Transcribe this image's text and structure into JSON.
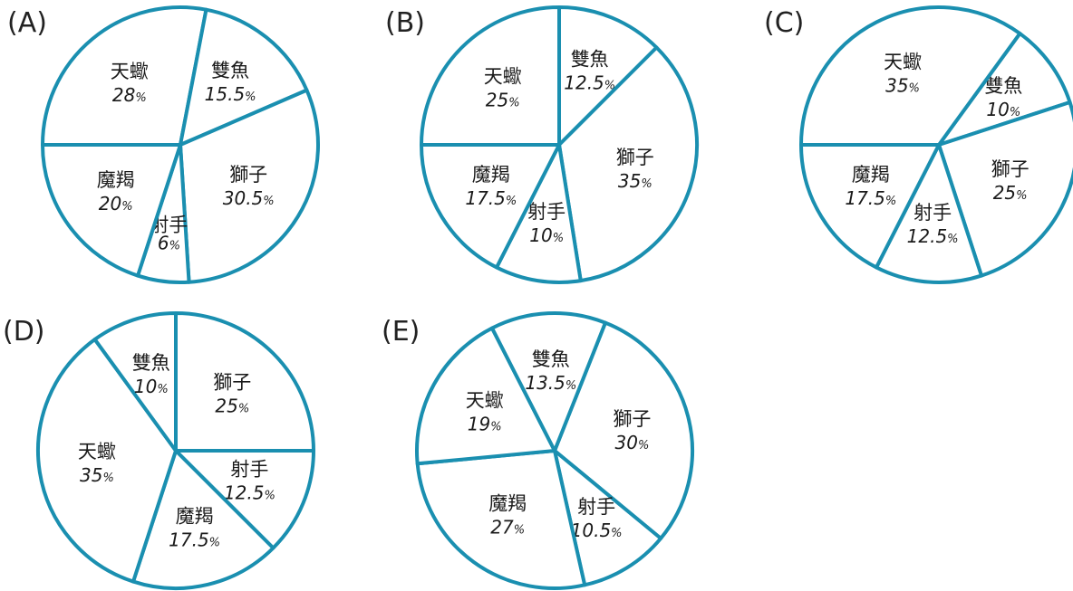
{
  "colors": {
    "outline": "#1a8fb0",
    "background": "#ffffff",
    "text": "#1a1a1a"
  },
  "chart_data": [
    {
      "type": "pie",
      "label": "(A)",
      "slices": [
        {
          "name": "天蠍",
          "value": 28,
          "value_text": "28",
          "unit": "%"
        },
        {
          "name": "雙魚",
          "value": 15.5,
          "value_text": "15.5",
          "unit": "%"
        },
        {
          "name": "獅子",
          "value": 30.5,
          "value_text": "30.5",
          "unit": "%"
        },
        {
          "name": "射手",
          "value": 6,
          "value_text": "6",
          "unit": "%"
        },
        {
          "name": "魔羯",
          "value": 20,
          "value_text": "20",
          "unit": "%"
        }
      ]
    },
    {
      "type": "pie",
      "label": "(B)",
      "slices": [
        {
          "name": "雙魚",
          "value": 12.5,
          "value_text": "12.5",
          "unit": "%"
        },
        {
          "name": "獅子",
          "value": 35,
          "value_text": "35",
          "unit": "%"
        },
        {
          "name": "射手",
          "value": 10,
          "value_text": "10",
          "unit": "%"
        },
        {
          "name": "魔羯",
          "value": 17.5,
          "value_text": "17.5",
          "unit": "%"
        },
        {
          "name": "天蠍",
          "value": 25,
          "value_text": "25",
          "unit": "%"
        }
      ]
    },
    {
      "type": "pie",
      "label": "(C)",
      "slices": [
        {
          "name": "雙魚",
          "value": 10,
          "value_text": "10",
          "unit": "%"
        },
        {
          "name": "獅子",
          "value": 25,
          "value_text": "25",
          "unit": "%"
        },
        {
          "name": "射手",
          "value": 12.5,
          "value_text": "12.5",
          "unit": "%"
        },
        {
          "name": "魔羯",
          "value": 17.5,
          "value_text": "17.5",
          "unit": "%"
        },
        {
          "name": "天蠍",
          "value": 35,
          "value_text": "35",
          "unit": "%"
        }
      ]
    },
    {
      "type": "pie",
      "label": "(D)",
      "slices": [
        {
          "name": "獅子",
          "value": 25,
          "value_text": "25",
          "unit": "%"
        },
        {
          "name": "射手",
          "value": 12.5,
          "value_text": "12.5",
          "unit": "%"
        },
        {
          "name": "魔羯",
          "value": 17.5,
          "value_text": "17.5",
          "unit": "%"
        },
        {
          "name": "天蠍",
          "value": 35,
          "value_text": "35",
          "unit": "%"
        },
        {
          "name": "雙魚",
          "value": 10,
          "value_text": "10",
          "unit": "%"
        }
      ]
    },
    {
      "type": "pie",
      "label": "(E)",
      "slices": [
        {
          "name": "獅子",
          "value": 30,
          "value_text": "30",
          "unit": "%"
        },
        {
          "name": "射手",
          "value": 10.5,
          "value_text": "10.5",
          "unit": "%"
        },
        {
          "name": "魔羯",
          "value": 27,
          "value_text": "27",
          "unit": "%"
        },
        {
          "name": "天蠍",
          "value": 19,
          "value_text": "19",
          "unit": "%"
        },
        {
          "name": "雙魚",
          "value": 13.5,
          "value_text": "13.5",
          "unit": "%"
        }
      ]
    }
  ]
}
